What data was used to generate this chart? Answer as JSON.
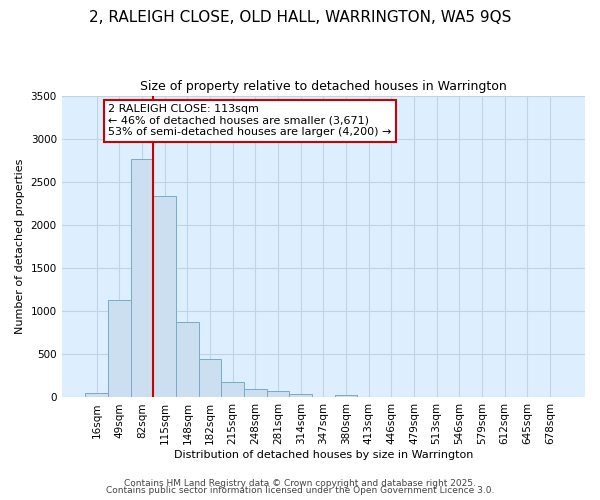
{
  "title1": "2, RALEIGH CLOSE, OLD HALL, WARRINGTON, WA5 9QS",
  "title2": "Size of property relative to detached houses in Warrington",
  "xlabel": "Distribution of detached houses by size in Warrington",
  "ylabel": "Number of detached properties",
  "bar_labels": [
    "16sqm",
    "49sqm",
    "82sqm",
    "115sqm",
    "148sqm",
    "182sqm",
    "215sqm",
    "248sqm",
    "281sqm",
    "314sqm",
    "347sqm",
    "380sqm",
    "413sqm",
    "446sqm",
    "479sqm",
    "513sqm",
    "546sqm",
    "579sqm",
    "612sqm",
    "645sqm",
    "678sqm"
  ],
  "bar_values": [
    50,
    1130,
    2770,
    2340,
    880,
    450,
    175,
    100,
    75,
    45,
    0,
    25,
    10,
    0,
    0,
    0,
    0,
    0,
    0,
    0,
    0
  ],
  "bar_color": "#ccdff0",
  "bar_edgecolor": "#7aaac8",
  "vline_color": "#cc0000",
  "vline_x_idx": 2.5,
  "annotation_text": "2 RALEIGH CLOSE: 113sqm\n← 46% of detached houses are smaller (3,671)\n53% of semi-detached houses are larger (4,200) →",
  "annotation_box_edgecolor": "#cc0000",
  "ylim": [
    0,
    3500
  ],
  "yticks": [
    0,
    500,
    1000,
    1500,
    2000,
    2500,
    3000,
    3500
  ],
  "grid_color": "#c0d4e8",
  "plot_bg_color": "#ddeeff",
  "fig_bg_color": "#ffffff",
  "footer1": "Contains HM Land Registry data © Crown copyright and database right 2025.",
  "footer2": "Contains public sector information licensed under the Open Government Licence 3.0.",
  "title1_fontsize": 11,
  "title2_fontsize": 9,
  "xlabel_fontsize": 8,
  "ylabel_fontsize": 8,
  "tick_fontsize": 7.5,
  "footer_fontsize": 6.5
}
